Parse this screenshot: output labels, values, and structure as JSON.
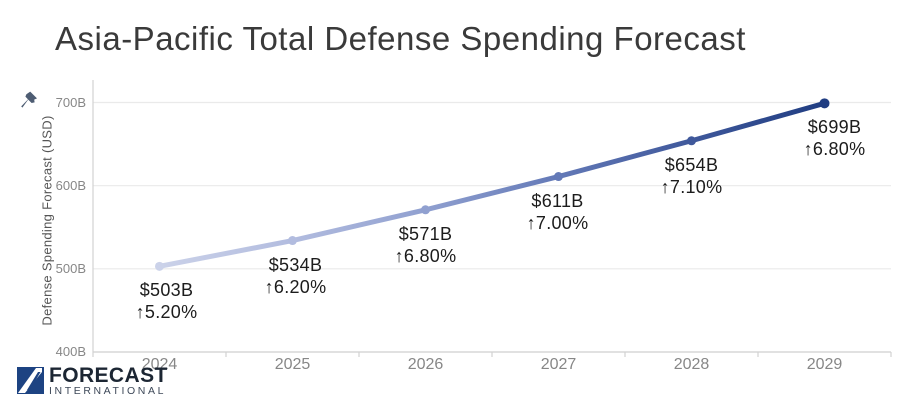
{
  "header": {
    "title": "Asia-Pacific Total Defense Spending Forecast"
  },
  "icons": {
    "pin": "pushpin-icon",
    "logo_mark": "forecast-international-logo-mark",
    "up_arrow": "↑"
  },
  "colors": {
    "title_text": "#3a3a3a",
    "axis_text": "#878787",
    "axis_title_text": "#555555",
    "label_text": "#1c1c1c",
    "gridline": "#eaeaea",
    "axis_line": "#d2d2d2",
    "pin": "#4e5d73",
    "logo_navy": "#1d4382",
    "logo_text": "#1c2633",
    "logo_subtext": "#3d4858",
    "line_gradient": [
      "#cbd2e9",
      "#b2bcdf",
      "#90a0d0",
      "#6379b7",
      "#3f589b",
      "#203d82"
    ]
  },
  "chart_data": {
    "type": "line",
    "title": "Asia-Pacific Total Defense Spending Forecast",
    "categories": [
      "2024",
      "2025",
      "2026",
      "2027",
      "2028",
      "2029"
    ],
    "series": [
      {
        "name": "Defense Spending Forecast (USD)",
        "values": [
          503,
          534,
          571,
          611,
          654,
          699
        ]
      }
    ],
    "value_labels": [
      "$503B",
      "$534B",
      "$571B",
      "$611B",
      "$654B",
      "$699B"
    ],
    "pct_labels": [
      "↑5.20%",
      "↑6.20%",
      "↑6.80%",
      "↑7.00%",
      "↑7.10%",
      "↑6.80%"
    ],
    "xlabel": "",
    "ylabel": "Defense Spending Forecast (USD)",
    "ylim": [
      400,
      700
    ],
    "yticks": [
      400,
      500,
      600,
      700
    ],
    "ytick_labels": [
      "400B",
      "500B",
      "600B",
      "700B"
    ],
    "grid": true,
    "legend": false
  },
  "branding": {
    "logo_name": "FORECAST",
    "logo_sub": "INTERNATIONAL"
  }
}
